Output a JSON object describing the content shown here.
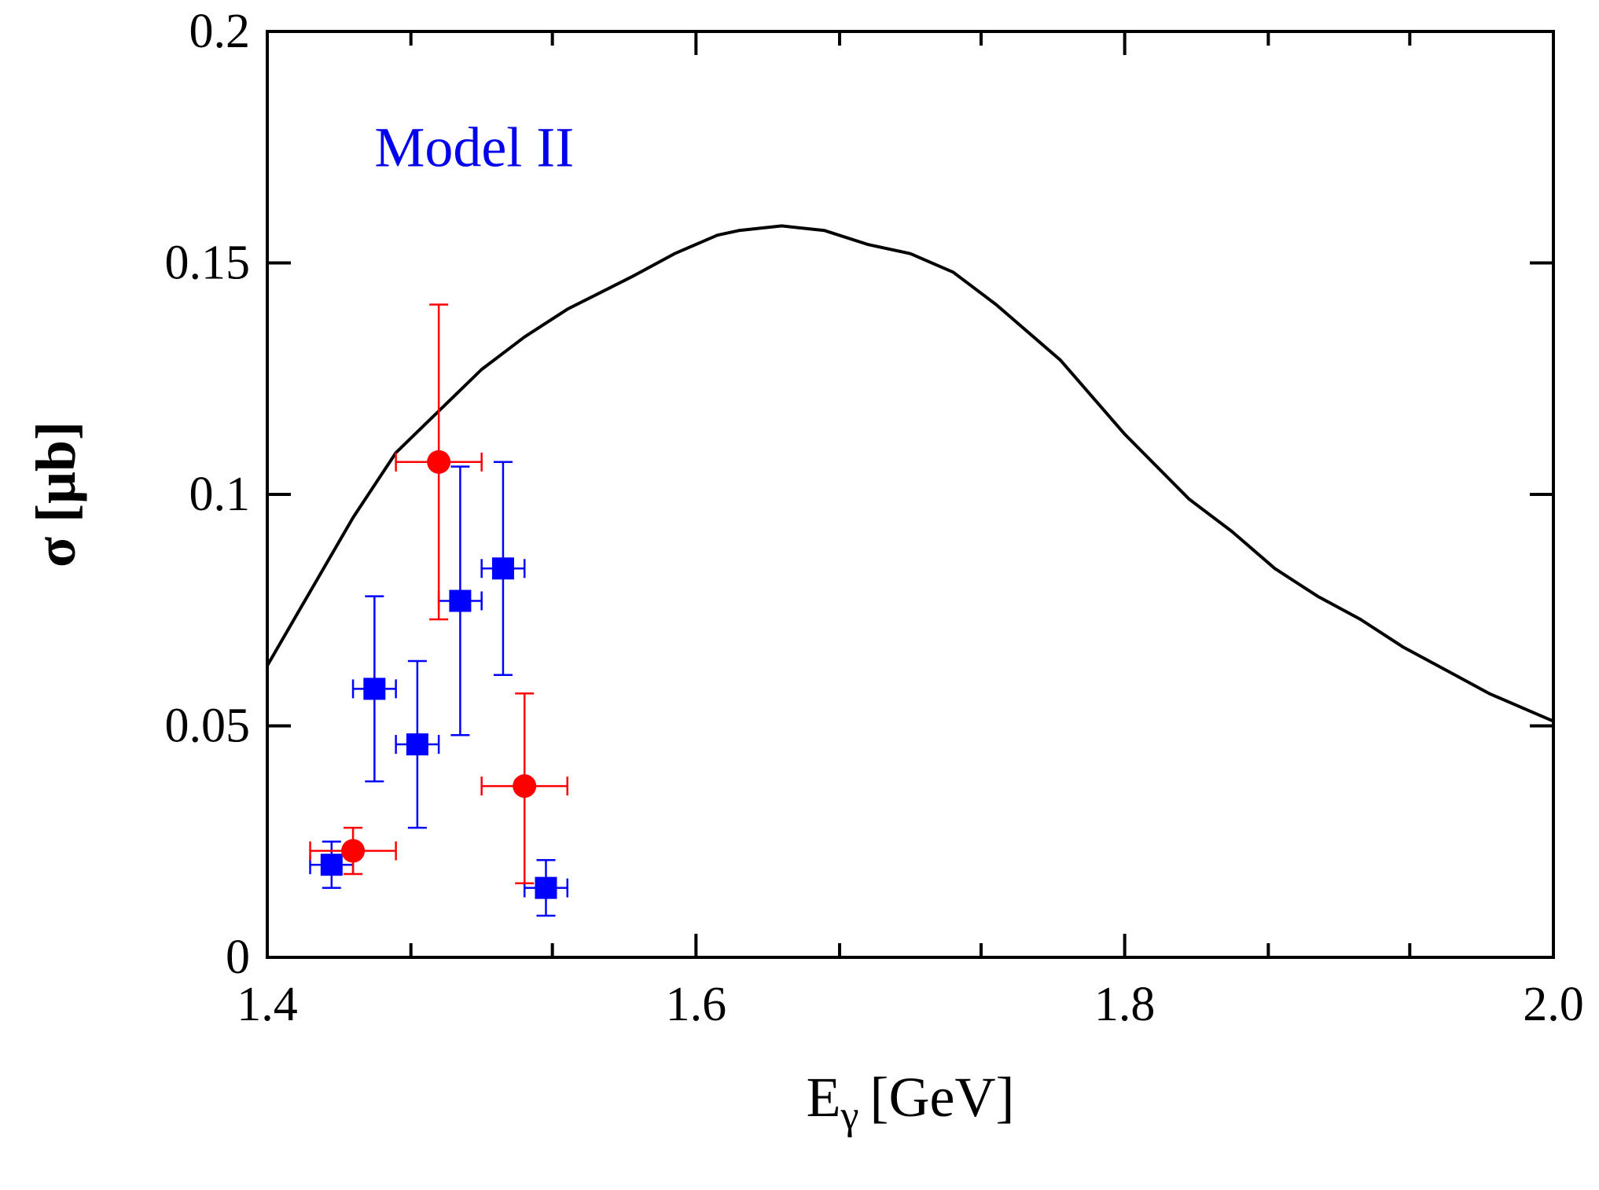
{
  "chart_data": {
    "type": "scatter",
    "title": "",
    "xlabel": "E",
    "xlabel_subscript": "γ",
    "xlabel_unit": "[GeV]",
    "ylabel": "σ [μb]",
    "xlim": [
      1.4,
      2.0
    ],
    "ylim": [
      0,
      0.2
    ],
    "x_ticks": [
      1.4,
      1.6,
      1.8,
      2.0
    ],
    "x_tick_labels": [
      "1.4",
      "1.6",
      "1.8",
      "2.0"
    ],
    "y_ticks": [
      0,
      0.05,
      0.1,
      0.15,
      0.2
    ],
    "y_tick_labels": [
      "0",
      "0.05",
      "0.1",
      "0.15",
      "0.2"
    ],
    "x_minor_ticks": [
      1.467,
      1.533,
      1.667,
      1.733,
      1.867,
      1.933
    ],
    "grid": false,
    "legend": "none",
    "annotations": [
      {
        "text": "Model II",
        "color": "#0000ee",
        "x": 1.45,
        "y": 0.175
      }
    ],
    "curve": {
      "color": "#000000",
      "x": [
        1.4,
        1.42,
        1.44,
        1.46,
        1.48,
        1.5,
        1.52,
        1.54,
        1.57,
        1.59,
        1.61,
        1.62,
        1.64,
        1.66,
        1.68,
        1.7,
        1.72,
        1.74,
        1.77,
        1.8,
        1.83,
        1.85,
        1.87,
        1.89,
        1.91,
        1.93,
        1.95,
        1.97,
        1.99,
        2.0
      ],
      "y": [
        0.063,
        0.079,
        0.095,
        0.109,
        0.118,
        0.127,
        0.134,
        0.14,
        0.147,
        0.152,
        0.156,
        0.157,
        0.158,
        0.157,
        0.154,
        0.152,
        0.148,
        0.141,
        0.129,
        0.113,
        0.099,
        0.092,
        0.084,
        0.078,
        0.073,
        0.067,
        0.062,
        0.057,
        0.053,
        0.051
      ]
    },
    "series": [
      {
        "marker": "square",
        "color": "#0000ff",
        "points": [
          {
            "x": 1.43,
            "y": 0.02,
            "xerr": 0.01,
            "ylo": 0.015,
            "yhi": 0.025
          },
          {
            "x": 1.45,
            "y": 0.058,
            "xerr": 0.01,
            "ylo": 0.038,
            "yhi": 0.078
          },
          {
            "x": 1.47,
            "y": 0.046,
            "xerr": 0.01,
            "ylo": 0.028,
            "yhi": 0.064
          },
          {
            "x": 1.49,
            "y": 0.077,
            "xerr": 0.01,
            "ylo": 0.048,
            "yhi": 0.106
          },
          {
            "x": 1.51,
            "y": 0.084,
            "xerr": 0.01,
            "ylo": 0.061,
            "yhi": 0.107
          },
          {
            "x": 1.53,
            "y": 0.015,
            "xerr": 0.01,
            "ylo": 0.009,
            "yhi": 0.021
          }
        ]
      },
      {
        "marker": "circle",
        "color": "#ff0000",
        "points": [
          {
            "x": 1.44,
            "y": 0.023,
            "xerr": 0.02,
            "ylo": 0.018,
            "yhi": 0.028
          },
          {
            "x": 1.48,
            "y": 0.107,
            "xerr": 0.02,
            "ylo": 0.073,
            "yhi": 0.141
          },
          {
            "x": 1.52,
            "y": 0.037,
            "xerr": 0.02,
            "ylo": 0.016,
            "yhi": 0.057
          }
        ]
      }
    ]
  }
}
